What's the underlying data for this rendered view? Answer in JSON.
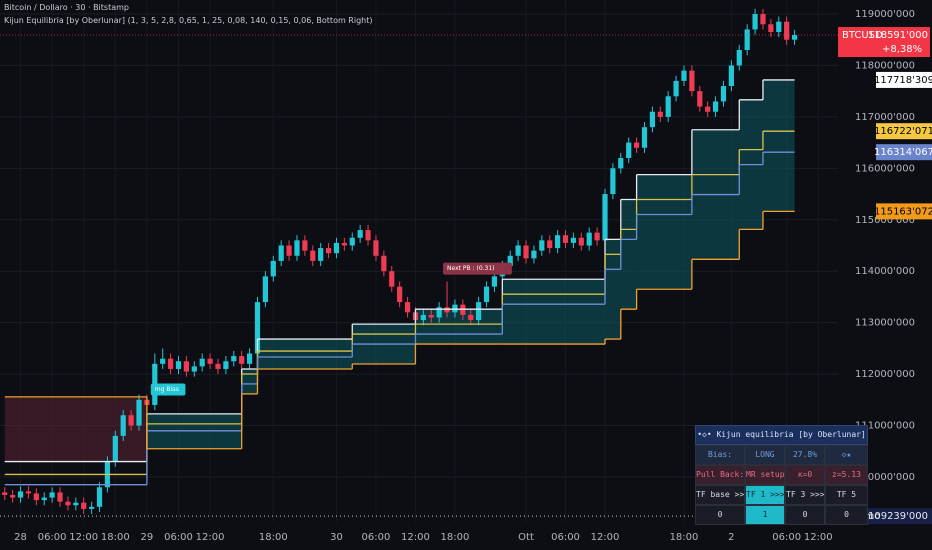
{
  "header": {
    "symbol": "Bitcoin / Dollaro · 30 · Bitstamp",
    "indicator": "Kijun Equilibria [by Oberlunar] (1, 3, 5, 2,8, 0,65, 1, 25, 0,08, 140, 0,15, 0,06, Bottom Right)"
  },
  "chart_data": {
    "type": "candlestick",
    "up_color": "#22c7d6",
    "down_color": "#ef3b55",
    "grid": true,
    "x": [
      0,
      1,
      2,
      3,
      4,
      5,
      6,
      7,
      8,
      9,
      10,
      11,
      12,
      13,
      14,
      15,
      16,
      17,
      18,
      19,
      20,
      21,
      22,
      23,
      24,
      25,
      26,
      27,
      28,
      29,
      30,
      31,
      32,
      33,
      34,
      35,
      36,
      37,
      38,
      39,
      40,
      41,
      42,
      43,
      44,
      45,
      46,
      47,
      48,
      49,
      50,
      51,
      52,
      53,
      54,
      55,
      56,
      57,
      58,
      59,
      60,
      61,
      62,
      63,
      64,
      65,
      66,
      67,
      68,
      69,
      70,
      71,
      72,
      73,
      74,
      75,
      76,
      77,
      78,
      79,
      80,
      81,
      82,
      83,
      84,
      85,
      86,
      87,
      88,
      89,
      90,
      91,
      92,
      93,
      94,
      95,
      96,
      97,
      98,
      99,
      100
    ],
    "open": [
      109700,
      109650,
      109600,
      109720,
      109680,
      109550,
      109600,
      109700,
      109520,
      109450,
      109500,
      109380,
      109420,
      109800,
      110300,
      110800,
      111200,
      111000,
      111500,
      111400,
      112200,
      112300,
      112100,
      112250,
      112050,
      112150,
      112300,
      112200,
      112100,
      112250,
      112350,
      112200,
      112400,
      113400,
      113900,
      114200,
      114500,
      114300,
      114600,
      114400,
      114200,
      114450,
      114350,
      114550,
      114500,
      114650,
      114800,
      114600,
      114300,
      114000,
      113700,
      113400,
      113200,
      113050,
      113150,
      113100,
      113300,
      113200,
      113350,
      113150,
      113050,
      113400,
      113700,
      113900,
      114100,
      114300,
      114500,
      114250,
      114400,
      114600,
      114450,
      114700,
      114550,
      114650,
      114500,
      114750,
      114600,
      115500,
      116000,
      116200,
      116500,
      116400,
      116800,
      117100,
      117000,
      117400,
      117700,
      117900,
      117500,
      117200,
      117100,
      117300,
      117600,
      118000,
      118300,
      118700,
      119000,
      118800,
      118650,
      118850,
      118500
    ],
    "high": [
      109800,
      109750,
      109820,
      109820,
      109780,
      109700,
      109800,
      109800,
      109620,
      109600,
      109600,
      109520,
      109900,
      110400,
      110900,
      111300,
      111300,
      111600,
      111600,
      112400,
      112500,
      112400,
      112350,
      112350,
      112250,
      112400,
      112400,
      112300,
      112350,
      112450,
      112450,
      112500,
      113500,
      114000,
      114300,
      114600,
      114600,
      114700,
      114700,
      114500,
      114550,
      114550,
      114650,
      114650,
      114750,
      114900,
      114900,
      114700,
      114400,
      114100,
      113800,
      113500,
      113300,
      113250,
      113250,
      113400,
      113800,
      113450,
      113450,
      113250,
      113500,
      113800,
      114000,
      114200,
      114400,
      114600,
      114600,
      114500,
      114700,
      114700,
      114800,
      114800,
      114750,
      114750,
      114850,
      114850,
      115600,
      116100,
      116300,
      116600,
      116600,
      116900,
      117200,
      117200,
      117500,
      117800,
      118000,
      118000,
      117600,
      117300,
      117400,
      117700,
      118100,
      118400,
      118800,
      119100,
      119100,
      118900,
      118950,
      118950,
      118691
    ],
    "low": [
      109550,
      109500,
      109500,
      109580,
      109450,
      109450,
      109500,
      109420,
      109350,
      109350,
      109280,
      109280,
      109320,
      109700,
      110200,
      110700,
      110900,
      110900,
      111300,
      111300,
      112100,
      112000,
      112000,
      111950,
      111950,
      112050,
      112100,
      112000,
      112000,
      112150,
      112100,
      112100,
      112300,
      113300,
      113800,
      114100,
      114200,
      114200,
      114300,
      114100,
      114100,
      114250,
      114250,
      114400,
      114400,
      114550,
      114500,
      114200,
      113900,
      113600,
      113300,
      113100,
      112950,
      112950,
      113000,
      113000,
      113100,
      113100,
      113050,
      112950,
      112950,
      113300,
      113600,
      113800,
      114000,
      114200,
      114150,
      114150,
      114300,
      114350,
      114350,
      114450,
      114450,
      114400,
      114400,
      114500,
      114500,
      115400,
      115900,
      116100,
      116300,
      116300,
      116700,
      116900,
      116900,
      117300,
      117600,
      117400,
      117100,
      117000,
      117000,
      117200,
      117500,
      117900,
      118200,
      118600,
      118700,
      118550,
      118550,
      118400,
      118400
    ],
    "close": [
      109650,
      109600,
      109720,
      109680,
      109550,
      109600,
      109700,
      109520,
      109450,
      109500,
      109380,
      109420,
      109800,
      110300,
      110800,
      111200,
      111000,
      111500,
      111400,
      112200,
      112300,
      112100,
      112250,
      112050,
      112150,
      112300,
      112200,
      112100,
      112250,
      112350,
      112200,
      112400,
      113400,
      113900,
      114200,
      114500,
      114300,
      114600,
      114400,
      114200,
      114450,
      114350,
      114550,
      114500,
      114650,
      114800,
      114600,
      114300,
      114000,
      113700,
      113400,
      113200,
      113050,
      113150,
      113100,
      113300,
      113200,
      113350,
      113150,
      113050,
      113400,
      113700,
      113900,
      114100,
      114300,
      114500,
      114250,
      114400,
      114600,
      114450,
      114700,
      114550,
      114650,
      114500,
      114750,
      114600,
      115500,
      116000,
      116200,
      116500,
      116400,
      116800,
      117100,
      117000,
      117400,
      117700,
      117900,
      117500,
      117200,
      117100,
      117300,
      117600,
      118000,
      118300,
      118700,
      119000,
      118800,
      118650,
      118850,
      118500,
      118591
    ],
    "xlim": [
      -0.6,
      105.5
    ],
    "ylim": [
      109125,
      119272
    ],
    "xticks": [
      {
        "value": 2,
        "label": "28"
      },
      {
        "value": 6,
        "label": "06:00"
      },
      {
        "value": 10,
        "label": "12:00"
      },
      {
        "value": 14,
        "label": "18:00"
      },
      {
        "value": 18,
        "label": "29"
      },
      {
        "value": 22,
        "label": "06:00"
      },
      {
        "value": 26,
        "label": "12:00"
      },
      {
        "value": 34,
        "label": "18:00"
      },
      {
        "value": 42,
        "label": "30"
      },
      {
        "value": 47,
        "label": "06:00"
      },
      {
        "value": 52,
        "label": "12:00"
      },
      {
        "value": 57,
        "label": "18:00"
      },
      {
        "value": 66,
        "label": "Ott"
      },
      {
        "value": 71,
        "label": "06:00"
      },
      {
        "value": 76,
        "label": "12:00"
      },
      {
        "value": 86,
        "label": "18:00"
      },
      {
        "value": 92,
        "label": "2"
      },
      {
        "value": 99,
        "label": "06:00"
      },
      {
        "value": 103,
        "label": "12:00"
      }
    ],
    "yticks": [
      {
        "value": 110000,
        "label": "110000'000"
      },
      {
        "value": 111000,
        "label": "111000'000"
      },
      {
        "value": 112000,
        "label": "112000'000"
      },
      {
        "value": 113000,
        "label": "113000'000"
      },
      {
        "value": 114000,
        "label": "114000'000"
      },
      {
        "value": 115000,
        "label": "115000'000"
      },
      {
        "value": 116000,
        "label": "116000'000"
      },
      {
        "value": 117000,
        "label": "117000'000"
      },
      {
        "value": 118000,
        "label": "118000'000"
      },
      {
        "value": 119000,
        "label": "119000'000"
      }
    ],
    "bands": {
      "bull_fill": "#0f5a60",
      "bear_fill": "#5a2233",
      "x": [
        0,
        18,
        30,
        32,
        44,
        52,
        63,
        76,
        78,
        80,
        87,
        93,
        96,
        100
      ],
      "series": [
        {
          "color": "#e9ecf2",
          "values": [
            110300,
            111227,
            112099,
            112681,
            112971,
            113262,
            113844,
            114619,
            115394,
            115878,
            116750,
            117332,
            117718,
            117718
          ]
        },
        {
          "color": "#d8c34a",
          "values": [
            110050,
            111033,
            112002,
            112448,
            112778,
            112971,
            113553,
            114328,
            114813,
            115394,
            115878,
            116363,
            116722,
            116722
          ]
        },
        {
          "color": "#6f8fd8",
          "values": [
            109850,
            110898,
            111809,
            112332,
            112584,
            112778,
            113359,
            114037,
            114619,
            115103,
            115490,
            116072,
            116314,
            116314
          ]
        },
        {
          "color": "#f2a22a",
          "values": [
            111557,
            110549,
            111615,
            112099,
            112196,
            112584,
            112584,
            112681,
            113262,
            113650,
            114231,
            114813,
            115163,
            115163
          ]
        }
      ]
    }
  },
  "last_price": {
    "symbol": "BTCUSD",
    "value": 118591,
    "label": "118591'000",
    "change": 8.38,
    "change_label": "+8,38%",
    "color": "#f23645"
  },
  "price_tags": [
    {
      "value": 117718.309,
      "label": "117718'309",
      "color": "#ffffff",
      "text_color": "#000000"
    },
    {
      "value": 116722.071,
      "label": "116722'071",
      "color": "#f5c842",
      "text_color": "#000000"
    },
    {
      "value": 116314.067,
      "label": "116314'067",
      "color": "#6a84cc",
      "text_color": "#ffffff"
    },
    {
      "value": 115163.072,
      "label": "115163'072",
      "color": "#f29a1a",
      "text_color": "#000000"
    }
  ],
  "minimum": {
    "label": "Minimo",
    "value": 109239,
    "value_label": "109239'000"
  },
  "annotations": [
    {
      "text": "mg Bias",
      "x": 19,
      "y": 111700,
      "color": "#22c7d6"
    },
    {
      "text": "Next PB : (0.31)",
      "x": 56,
      "y": 114050,
      "color": "#8d3347"
    }
  ],
  "table": {
    "title": "•◇• Kijun equilibria [by Oberlunar] •◇•",
    "rows": [
      [
        "Bias:",
        "LONG",
        "27.8%",
        "◇★"
      ],
      [
        "Pull Back:",
        "MR setup ↓",
        "κ=0",
        "z=5.13"
      ],
      [
        "TF base >>>",
        "TF 1 >>>",
        "TF 3 >>>",
        "TF 5"
      ],
      [
        "0",
        "1",
        "0",
        "0"
      ]
    ]
  }
}
